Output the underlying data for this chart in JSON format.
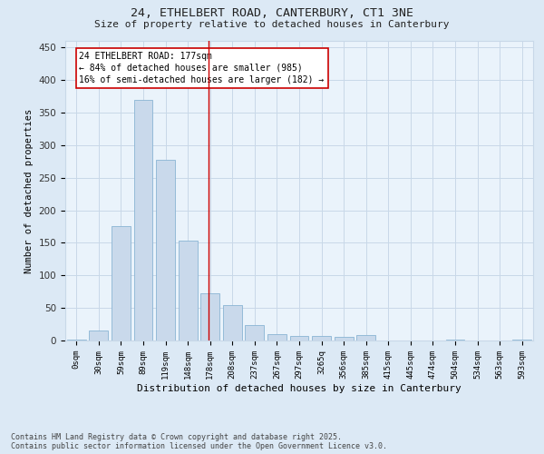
{
  "title1": "24, ETHELBERT ROAD, CANTERBURY, CT1 3NE",
  "title2": "Size of property relative to detached houses in Canterbury",
  "xlabel": "Distribution of detached houses by size in Canterbury",
  "ylabel": "Number of detached properties",
  "categories": [
    "0sqm",
    "30sqm",
    "59sqm",
    "89sqm",
    "119sqm",
    "148sqm",
    "178sqm",
    "208sqm",
    "237sqm",
    "267sqm",
    "297sqm",
    "3265q",
    "356sqm",
    "385sqm",
    "415sqm",
    "445sqm",
    "474sqm",
    "504sqm",
    "534sqm",
    "563sqm",
    "593sqm"
  ],
  "bar_heights": [
    2,
    16,
    176,
    370,
    277,
    153,
    72,
    55,
    24,
    10,
    7,
    7,
    6,
    8,
    0,
    0,
    0,
    1,
    0,
    0,
    1
  ],
  "bar_color": "#c9d9eb",
  "bar_edge_color": "#8ab4d4",
  "annotation_text": "24 ETHELBERT ROAD: 177sqm\n← 84% of detached houses are smaller (985)\n16% of semi-detached houses are larger (182) →",
  "annotation_box_color": "#ffffff",
  "annotation_box_edge": "#cc0000",
  "grid_color": "#c8d8e8",
  "background_color": "#dce9f5",
  "plot_bg_color": "#eaf3fb",
  "footer_text": "Contains HM Land Registry data © Crown copyright and database right 2025.\nContains public sector information licensed under the Open Government Licence v3.0.",
  "ylim": [
    0,
    460
  ],
  "yticks": [
    0,
    50,
    100,
    150,
    200,
    250,
    300,
    350,
    400,
    450
  ]
}
